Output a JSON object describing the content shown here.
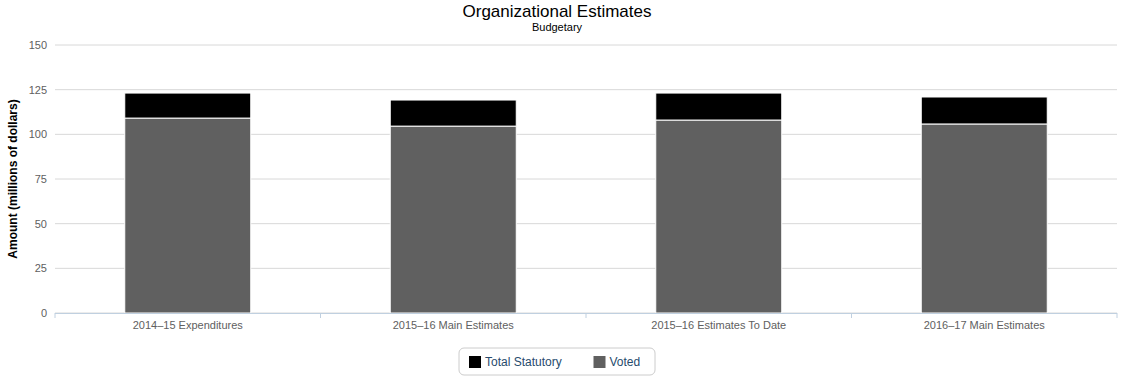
{
  "chart_data": {
    "type": "bar",
    "title": "Organizational Estimates",
    "subtitle": "Budgetary",
    "y_label": "Amount (millions of dollars)",
    "categories": [
      "2014–15 Expenditures",
      "2015–16 Main Estimates",
      "2015–16 Estimates To Date",
      "2016–17 Main Estimates"
    ],
    "series": [
      {
        "name": "Total Statutory",
        "color": "#000000",
        "values": [
          14.0,
          14.6,
          15.1,
          15.1
        ]
      },
      {
        "name": "Voted",
        "color": "#606060",
        "values": [
          109.1,
          104.6,
          108.0,
          105.8
        ]
      }
    ],
    "stacked": true,
    "ylim": [
      0,
      150
    ],
    "yticks": [
      0,
      25,
      50,
      75,
      100,
      125,
      150
    ],
    "grid": true,
    "legend": "bottom"
  }
}
